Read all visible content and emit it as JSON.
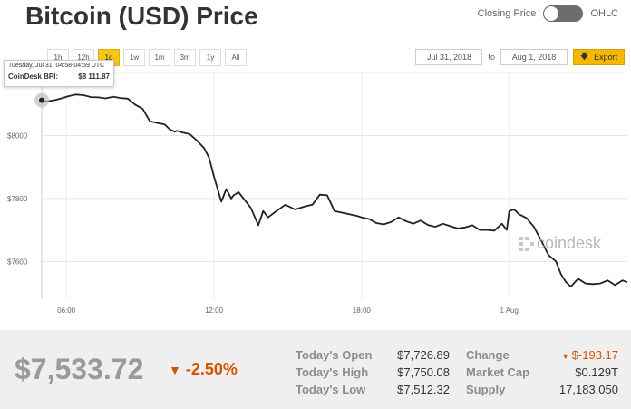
{
  "header": {
    "title": "Bitcoin (USD) Price",
    "toggle_left": "Closing Price",
    "toggle_right": "OHLC"
  },
  "ranges": [
    "1h",
    "12h",
    "1d",
    "1w",
    "1m",
    "3m",
    "1y",
    "All"
  ],
  "active_range": "1d",
  "date_range": {
    "from": "Jul 31, 2018",
    "to_label": "to",
    "to": "Aug 1, 2018"
  },
  "export_label": "Export",
  "tooltip": {
    "time": "Tuesday, Jul 31, 04:58-04:59 UTC",
    "label": "CoinDesk BPI:",
    "value": "$8 111.87"
  },
  "watermark": "coindesk",
  "colors": {
    "accent": "#f5b800",
    "negative": "#d35400",
    "line": "#222222"
  },
  "chart_data": {
    "type": "line",
    "title": "",
    "xlabel": "",
    "ylabel": "",
    "x_tick_labels": [
      "06:00",
      "12:00",
      "18:00",
      "1 Aug"
    ],
    "y_tick_labels": [
      "$7600",
      "$7800",
      "$8000"
    ],
    "y_ticks": [
      7600,
      7800,
      8000
    ],
    "x_ticks": [
      5.0,
      11.0,
      17.0,
      23.0
    ],
    "xlim": [
      4.0,
      27.8
    ],
    "ylim": [
      7480,
      8200
    ],
    "grid": true,
    "series": [
      {
        "x": [
          4.0,
          4.2,
          4.5,
          4.8,
          5.1,
          5.4,
          5.7,
          6.0,
          6.3,
          6.6,
          6.9,
          7.2,
          7.5,
          7.8,
          8.1,
          8.4,
          8.7,
          9.0,
          9.2,
          9.4,
          9.5,
          9.7,
          10.0,
          10.3,
          10.6,
          10.8,
          11.0,
          11.3,
          11.5,
          11.7,
          11.8,
          11.9,
          12.0,
          12.2,
          12.5,
          12.8,
          13.0,
          13.2,
          13.5,
          13.9,
          14.3,
          14.7,
          15.0,
          15.3,
          15.6,
          15.9,
          16.2,
          16.5,
          16.8,
          17.0,
          17.3,
          17.6,
          17.9,
          18.2,
          18.5,
          18.8,
          19.1,
          19.4,
          19.7,
          20.0,
          20.3,
          20.6,
          20.9,
          21.2,
          21.5,
          21.8,
          22.1,
          22.4,
          22.7,
          22.9,
          23.0,
          23.2,
          23.4,
          23.7,
          24.0,
          24.3,
          24.6,
          24.9,
          25.1,
          25.3,
          25.5,
          25.8,
          26.1,
          26.4,
          26.7,
          27.0,
          27.3,
          27.6,
          27.8
        ],
        "y": [
          8111.87,
          8108,
          8112,
          8118,
          8125,
          8130,
          8128,
          8122,
          8121,
          8118,
          8123,
          8119,
          8117,
          8098,
          8085,
          8045,
          8040,
          8035,
          8020,
          8012,
          8015,
          8010,
          8005,
          7985,
          7960,
          7930,
          7870,
          7790,
          7830,
          7800,
          7810,
          7815,
          7820,
          7800,
          7770,
          7715,
          7760,
          7740,
          7758,
          7780,
          7765,
          7775,
          7780,
          7812,
          7810,
          7760,
          7755,
          7750,
          7745,
          7740,
          7735,
          7722,
          7718,
          7725,
          7740,
          7728,
          7720,
          7730,
          7716,
          7710,
          7720,
          7712,
          7705,
          7708,
          7715,
          7700,
          7700,
          7698,
          7720,
          7700,
          7760,
          7765,
          7750,
          7738,
          7710,
          7666,
          7620,
          7600,
          7560,
          7535,
          7520,
          7545,
          7530,
          7528,
          7530,
          7540,
          7525,
          7540,
          7533.72
        ]
      }
    ]
  },
  "footer": {
    "price": "$7,533.72",
    "change_pct": "-2.50%",
    "stats_left": [
      {
        "label": "Today's Open",
        "value": "$7,726.89"
      },
      {
        "label": "Today's High",
        "value": "$7,750.08"
      },
      {
        "label": "Today's Low",
        "value": "$7,512.32"
      }
    ],
    "stats_right": [
      {
        "label": "Change",
        "value": "$-193.17",
        "negative": true
      },
      {
        "label": "Market Cap",
        "value": "$0.129T",
        "negative": false
      },
      {
        "label": "Supply",
        "value": "17,183,050",
        "negative": false
      }
    ]
  }
}
